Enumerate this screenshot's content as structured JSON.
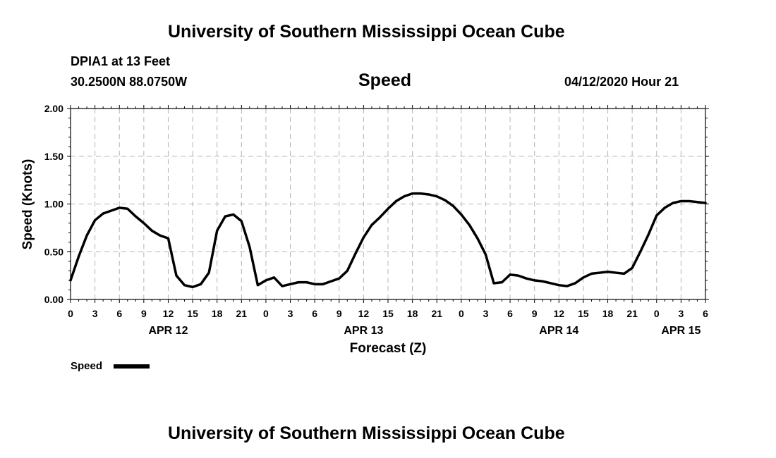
{
  "header": {
    "top_title": "University of Southern Mississippi Ocean Cube",
    "station": "DPIA1 at 13 Feet",
    "coords": "30.2500N 88.0750W",
    "datetime": "04/12/2020 Hour 21",
    "bottom_title": "University of Southern Mississippi Ocean Cube"
  },
  "chart_data": {
    "type": "line",
    "title": "Speed",
    "xlabel": "Forecast (Z)",
    "ylabel": "Speed (Knots)",
    "xlim": [
      0,
      78
    ],
    "ylim": [
      0,
      2.0
    ],
    "grid": true,
    "legend": {
      "placement": "bottom-left",
      "label": "Speed"
    },
    "y_ticks": [
      0,
      0.5,
      1.0,
      1.5,
      2.0
    ],
    "y_tick_labels": [
      "0.00",
      "0.50",
      "1.00",
      "1.50",
      "2.00"
    ],
    "x_ticks": [
      0,
      3,
      6,
      9,
      12,
      15,
      18,
      21,
      24,
      27,
      30,
      33,
      36,
      39,
      42,
      45,
      48,
      51,
      54,
      57,
      60,
      63,
      66,
      69,
      72,
      75,
      78
    ],
    "x_tick_labels": [
      "0",
      "3",
      "6",
      "9",
      "12",
      "15",
      "18",
      "21",
      "0",
      "3",
      "6",
      "9",
      "12",
      "15",
      "18",
      "21",
      "0",
      "3",
      "6",
      "9",
      "12",
      "15",
      "18",
      "21",
      "0",
      "3",
      "6"
    ],
    "day_labels": [
      {
        "x": 12,
        "label": "APR 12"
      },
      {
        "x": 36,
        "label": "APR 13"
      },
      {
        "x": 60,
        "label": "APR 14"
      },
      {
        "x": 75,
        "label": "APR 15"
      }
    ],
    "series": [
      {
        "name": "Speed",
        "x": [
          0,
          1,
          2,
          3,
          4,
          5,
          6,
          7,
          8,
          9,
          10,
          11,
          12,
          13,
          14,
          15,
          16,
          17,
          18,
          19,
          20,
          21,
          22,
          23,
          24,
          25,
          26,
          27,
          28,
          29,
          30,
          31,
          32,
          33,
          34,
          35,
          36,
          37,
          38,
          39,
          40,
          41,
          42,
          43,
          44,
          45,
          46,
          47,
          48,
          49,
          50,
          51,
          52,
          53,
          54,
          55,
          56,
          57,
          58,
          59,
          60,
          61,
          62,
          63,
          64,
          65,
          66,
          67,
          68,
          69,
          70,
          71,
          72,
          73,
          74,
          75,
          76,
          77,
          78
        ],
        "values": [
          0.2,
          0.45,
          0.67,
          0.83,
          0.9,
          0.93,
          0.96,
          0.95,
          0.87,
          0.8,
          0.72,
          0.67,
          0.64,
          0.25,
          0.15,
          0.13,
          0.16,
          0.28,
          0.72,
          0.87,
          0.89,
          0.82,
          0.55,
          0.15,
          0.2,
          0.23,
          0.14,
          0.16,
          0.18,
          0.18,
          0.16,
          0.16,
          0.19,
          0.22,
          0.3,
          0.48,
          0.65,
          0.78,
          0.86,
          0.95,
          1.03,
          1.08,
          1.11,
          1.11,
          1.1,
          1.08,
          1.04,
          0.98,
          0.89,
          0.78,
          0.64,
          0.47,
          0.17,
          0.18,
          0.26,
          0.25,
          0.22,
          0.2,
          0.19,
          0.17,
          0.15,
          0.14,
          0.17,
          0.23,
          0.27,
          0.28,
          0.29,
          0.28,
          0.27,
          0.33,
          0.5,
          0.68,
          0.88,
          0.96,
          1.01,
          1.03,
          1.03,
          1.02,
          1.01
        ]
      }
    ]
  }
}
